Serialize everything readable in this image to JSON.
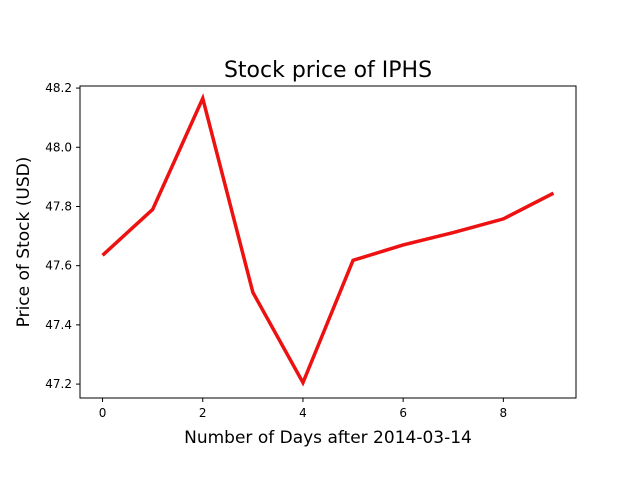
{
  "chart_data": {
    "type": "line",
    "title": "Stock price of IPHS",
    "xlabel": "Number of Days after 2014-03-14",
    "ylabel": "Price of Stock (USD)",
    "x": [
      0,
      1,
      2,
      3,
      4,
      5,
      6,
      7,
      8,
      9
    ],
    "series": [
      {
        "values": [
          47.635,
          47.79,
          48.165,
          47.51,
          47.205,
          47.618,
          47.67,
          47.712,
          47.758,
          47.845
        ],
        "color": "#ee1111"
      }
    ],
    "xlim": [
      -0.45,
      9.45
    ],
    "ylim": [
      47.153,
      48.207
    ],
    "xticks": [
      0,
      2,
      4,
      6,
      8
    ],
    "yticks": [
      47.2,
      47.4,
      47.6,
      47.8,
      48.0,
      48.2
    ],
    "ytick_labels": [
      "47.2",
      "47.4",
      "47.6",
      "47.8",
      "48.0",
      "48.2"
    ],
    "grid": false,
    "legend": "none"
  }
}
